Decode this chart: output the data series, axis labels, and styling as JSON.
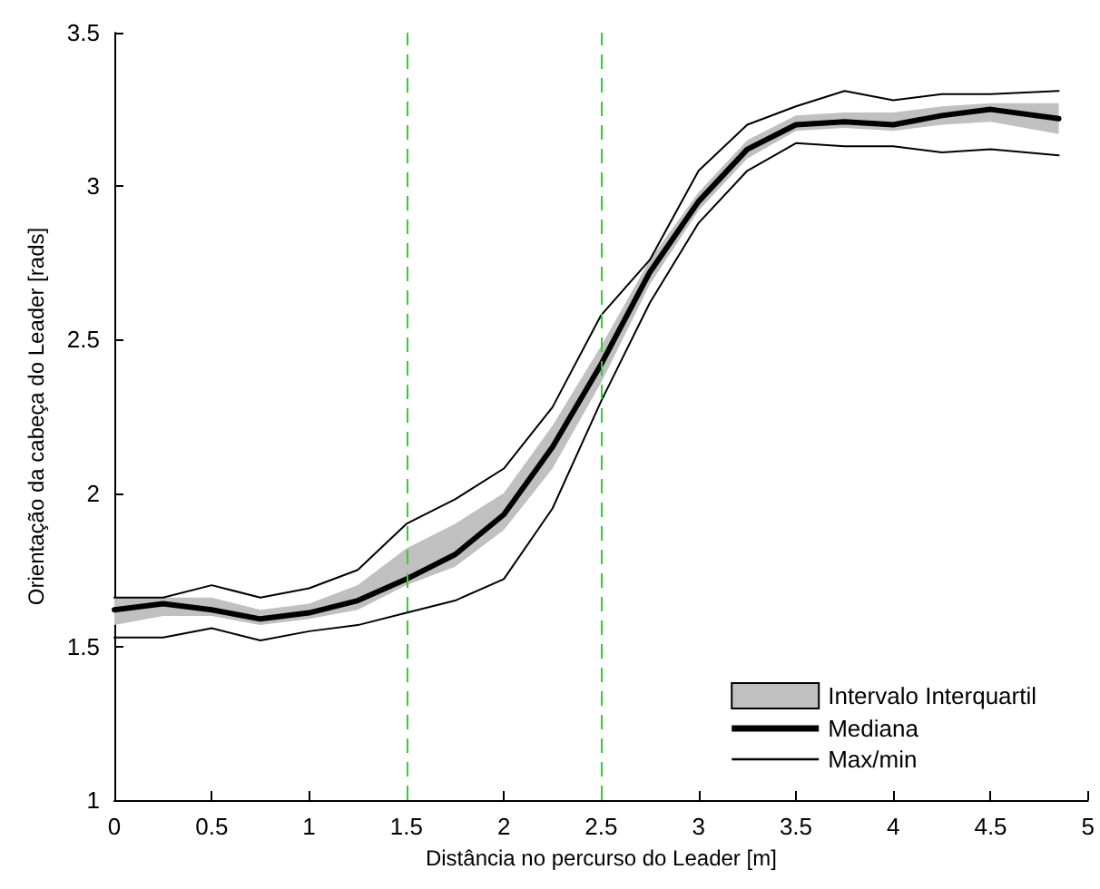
{
  "chart_data": {
    "type": "line",
    "xlabel": "Distância no percurso do Leader [m]",
    "ylabel": "Orientação da cabeça do Leader [rads]",
    "x": [
      0,
      0.25,
      0.5,
      0.75,
      1,
      1.25,
      1.5,
      1.75,
      2,
      2.25,
      2.5,
      2.75,
      3,
      3.25,
      3.5,
      3.75,
      4,
      4.25,
      4.5,
      4.85
    ],
    "series": [
      {
        "name": "Intervalo Interquartil",
        "type": "area",
        "color": "#c0c0c0",
        "values": [
          null,
          null,
          null,
          null,
          null,
          null,
          null,
          null,
          null,
          null,
          null,
          null,
          null,
          null,
          null,
          null,
          null,
          null,
          null,
          null
        ],
        "lower": [
          1.57,
          1.6,
          1.6,
          1.57,
          1.59,
          1.62,
          1.7,
          1.76,
          1.88,
          2.08,
          2.36,
          2.68,
          2.92,
          3.09,
          3.18,
          3.19,
          3.18,
          3.2,
          3.21,
          3.17
        ],
        "upper": [
          1.66,
          1.66,
          1.66,
          1.62,
          1.64,
          1.7,
          1.82,
          1.9,
          2.0,
          2.22,
          2.48,
          2.76,
          2.98,
          3.15,
          3.23,
          3.24,
          3.24,
          3.26,
          3.27,
          3.27
        ]
      },
      {
        "name": "Mediana",
        "color": "#000000",
        "values": [
          1.62,
          1.64,
          1.62,
          1.59,
          1.61,
          1.65,
          1.72,
          1.8,
          1.93,
          2.15,
          2.42,
          2.72,
          2.95,
          3.12,
          3.2,
          3.21,
          3.2,
          3.23,
          3.25,
          3.22
        ]
      },
      {
        "name": "Max/min",
        "color": "#000000",
        "values": [
          1.66,
          1.66,
          1.7,
          1.66,
          1.69,
          1.75,
          1.9,
          1.98,
          2.08,
          2.28,
          2.58,
          2.76,
          3.05,
          3.2,
          3.26,
          3.31,
          3.28,
          3.3,
          3.3,
          3.31
        ]
      },
      {
        "color": "#000000",
        "values": [
          1.53,
          1.53,
          1.56,
          1.52,
          1.55,
          1.57,
          1.61,
          1.65,
          1.72,
          1.95,
          2.3,
          2.62,
          2.88,
          3.05,
          3.14,
          3.13,
          3.13,
          3.11,
          3.12,
          3.1
        ]
      }
    ],
    "xlim": [
      0,
      5
    ],
    "xticks": [
      0,
      0.5,
      1,
      1.5,
      2,
      2.5,
      3,
      3.5,
      4,
      4.5,
      5
    ],
    "ylim": [
      1,
      3.5
    ],
    "yticks": [
      1,
      1.5,
      2,
      2.5,
      3,
      3.5
    ],
    "ref_lines": [
      {
        "axis": "x",
        "value": 1.5,
        "color": "#33cc33",
        "line_style": "dashed"
      },
      {
        "axis": "x",
        "value": 2.5,
        "color": "#33cc33",
        "line_style": "dashed"
      }
    ],
    "grid": false,
    "legend": "bottom right",
    "marker": "none",
    "line_style": "solid"
  }
}
